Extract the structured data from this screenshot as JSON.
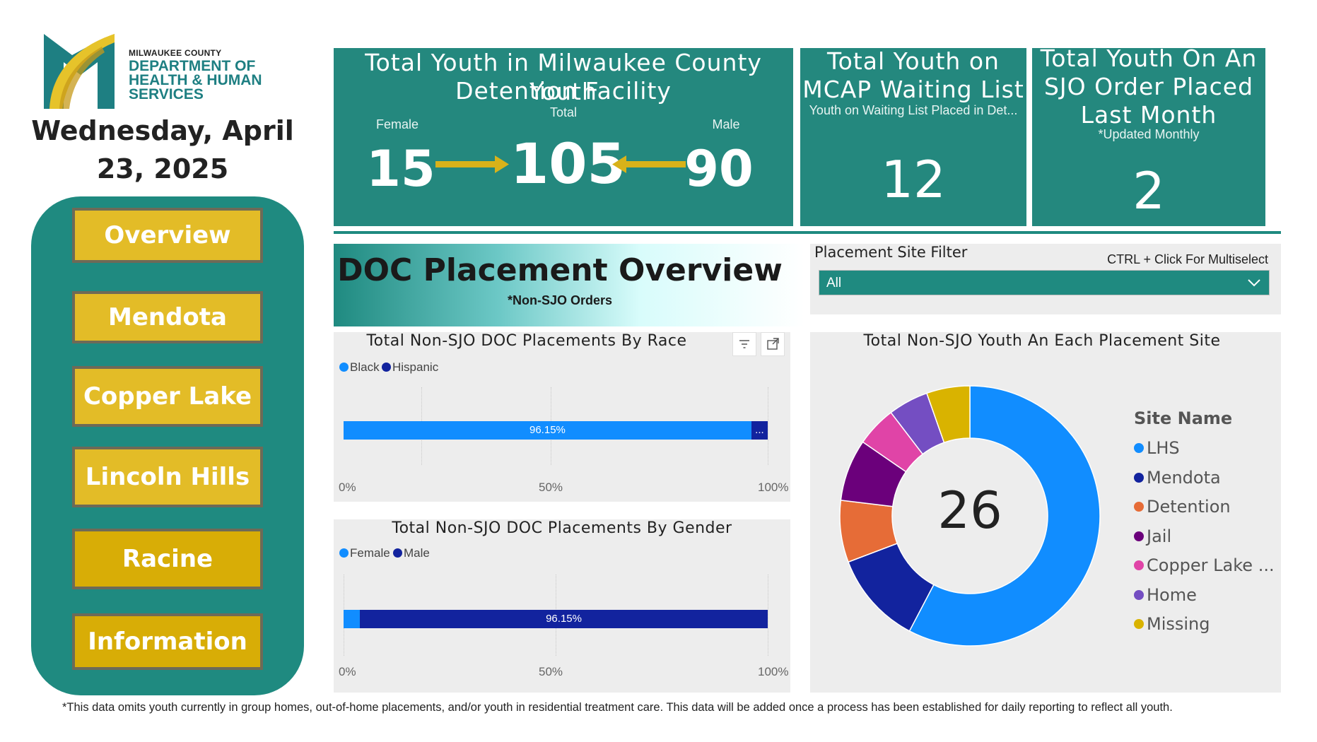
{
  "logo": {
    "small": "MILWAUKEE COUNTY",
    "line1": "DEPARTMENT OF",
    "line2": "HEALTH & HUMAN",
    "line3": "SERVICES"
  },
  "date_line1": "Wednesday, April",
  "date_line2": "23, 2025",
  "nav": [
    "Overview",
    "Mendota",
    "Copper Lake",
    "Lincoln Hills",
    "Racine",
    "Information"
  ],
  "kpi_detention": {
    "title_line1": "Total Youth in Milwaukee County Youth",
    "title_line2": "Detention Facility",
    "female_label": "Female",
    "total_label": "Total",
    "male_label": "Male",
    "female": "15",
    "total": "105",
    "male": "90"
  },
  "kpi_mcap": {
    "title_line1": "Total Youth on",
    "title_line2": "MCAP Waiting List",
    "subtitle": "Youth on Waiting List Placed in Det...",
    "value": "12"
  },
  "kpi_sjo": {
    "title_line1": "Total Youth On An",
    "title_line2": "SJO Order Placed",
    "title_line3": "Last Month",
    "subtitle": "*Updated Monthly",
    "value": "2"
  },
  "doc": {
    "title": "DOC Placement Overview",
    "subtitle": "*Non-SJO Orders"
  },
  "filter": {
    "label": "Placement Site Filter",
    "hint": "CTRL + Click For Multiselect",
    "value": "All"
  },
  "footnote": "*This data omits youth currently in group homes, out-of-home placements, and/or youth in residential treatment care.  This data will be added once a process has been established for daily reporting to reflect all youth.",
  "colors": {
    "teal": "#24887e",
    "gold": "#e3bc27",
    "blue": "#118dff",
    "navy": "#12239e"
  },
  "chart_data": [
    {
      "type": "bar",
      "title": "Total Non-SJO DOC Placements By Race",
      "orientation": "horizontal-100%-stacked",
      "series": [
        {
          "name": "Black",
          "values": [
            96.15
          ],
          "color": "#118dff",
          "label": "96.15%"
        },
        {
          "name": "Hispanic",
          "values": [
            3.85
          ],
          "color": "#12239e",
          "label": "..."
        }
      ],
      "xticks": [
        "0%",
        "50%",
        "100%"
      ],
      "xlim": [
        0,
        100
      ]
    },
    {
      "type": "bar",
      "title": "Total Non-SJO DOC Placements By Gender",
      "orientation": "horizontal-100%-stacked",
      "series": [
        {
          "name": "Female",
          "values": [
            3.85
          ],
          "color": "#118dff",
          "label": ""
        },
        {
          "name": "Male",
          "values": [
            96.15
          ],
          "color": "#12239e",
          "label": "96.15%"
        }
      ],
      "xticks": [
        "0%",
        "50%",
        "100%"
      ],
      "xlim": [
        0,
        100
      ]
    },
    {
      "type": "pie",
      "title": "Total Non-SJO Youth An Each Placement Site",
      "center_label": "26",
      "legend_title": "Site Name",
      "slices": [
        {
          "name": "LHS",
          "value": 15,
          "color": "#118dff"
        },
        {
          "name": "Mendota",
          "value": 3,
          "color": "#12239e"
        },
        {
          "name": "Detention",
          "value": 2,
          "color": "#e66c37"
        },
        {
          "name": "Jail",
          "value": 2,
          "color": "#6b007b"
        },
        {
          "name": "Copper Lake ...",
          "value": 1.3,
          "color": "#e044a7"
        },
        {
          "name": "Home",
          "value": 1.3,
          "color": "#744ec2"
        },
        {
          "name": "Missing",
          "value": 1.4,
          "color": "#d9b300"
        }
      ]
    }
  ]
}
